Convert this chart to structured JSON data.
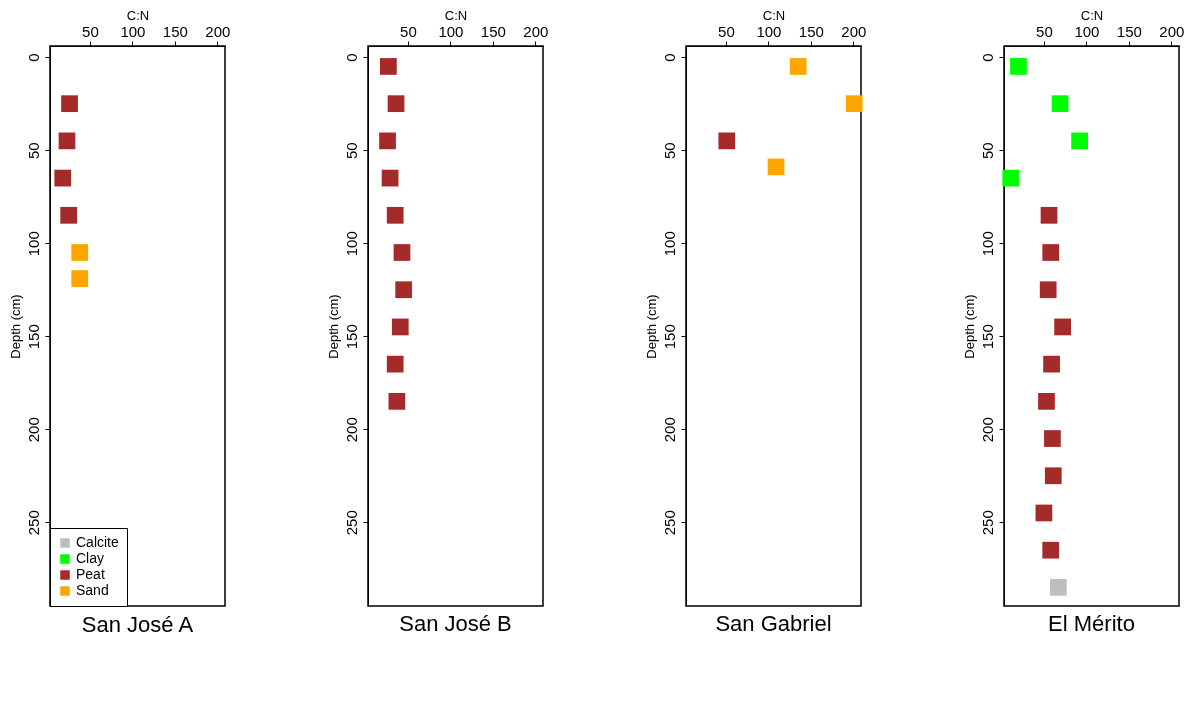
{
  "chart_data": [
    {
      "type": "scatter",
      "title": "San José A",
      "xlabel": "C:N",
      "ylabel": "Depth (cm)",
      "xlim": [
        3,
        209
      ],
      "xticks": [
        50,
        100,
        150,
        200
      ],
      "ylim": [
        295,
        -6
      ],
      "yticks": [
        0,
        50,
        100,
        150,
        200,
        250
      ],
      "grid": false,
      "marker": "square",
      "legend": "bottom left",
      "series": [
        {
          "name": "Calcite",
          "color": "#bebebe"
        },
        {
          "name": "Clay",
          "color": "#00ff00"
        },
        {
          "name": "Peat",
          "color": "#a52a2a",
          "x": [
            26,
            23,
            18,
            25
          ],
          "values": [
            25,
            45,
            65,
            85
          ]
        },
        {
          "name": "Sand",
          "color": "#ffa500",
          "x": [
            38,
            38
          ],
          "values": [
            105,
            119
          ]
        }
      ]
    },
    {
      "type": "scatter",
      "title": "San José B",
      "xlabel": "C:N",
      "ylabel": "Depth (cm)",
      "xlim": [
        3,
        209
      ],
      "xticks": [
        50,
        100,
        150,
        200
      ],
      "ylim": [
        295,
        -6
      ],
      "yticks": [
        0,
        50,
        100,
        150,
        200,
        250
      ],
      "grid": false,
      "marker": "square",
      "legend": false,
      "series": [
        {
          "name": "Peat",
          "color": "#a52a2a",
          "x": [
            27,
            36,
            26,
            29,
            35,
            43,
            45,
            41,
            35,
            37
          ],
          "values": [
            5,
            25,
            45,
            65,
            85,
            105,
            125,
            145,
            165,
            185
          ]
        }
      ]
    },
    {
      "type": "scatter",
      "title": "San Gabriel",
      "xlabel": "C:N",
      "ylabel": "Depth (cm)",
      "xlim": [
        3,
        209
      ],
      "xticks": [
        50,
        100,
        150,
        200
      ],
      "ylim": [
        295,
        -6
      ],
      "yticks": [
        0,
        50,
        100,
        150,
        200,
        250
      ],
      "grid": false,
      "marker": "square",
      "legend": false,
      "series": [
        {
          "name": "Peat",
          "color": "#a52a2a",
          "x": [
            51
          ],
          "values": [
            45
          ]
        },
        {
          "name": "Sand",
          "color": "#ffa500",
          "x": [
            135,
            201,
            109
          ],
          "values": [
            5,
            25,
            59
          ]
        }
      ]
    },
    {
      "type": "scatter",
      "title": "El Mérito",
      "xlabel": "C:N",
      "ylabel": "Depth (cm)",
      "xlim": [
        3,
        209
      ],
      "xticks": [
        50,
        100,
        150,
        200
      ],
      "ylim": [
        295,
        -6
      ],
      "yticks": [
        0,
        50,
        100,
        150,
        200,
        250
      ],
      "grid": false,
      "marker": "square",
      "legend": false,
      "series": [
        {
          "color": "#00ff00",
          "x": [
            20,
            69,
            92,
            11
          ],
          "values": [
            5,
            25,
            45,
            65
          ]
        },
        {
          "name": "Peat",
          "color": "#a52a2a",
          "x": [
            56,
            58,
            55,
            72,
            59,
            53,
            60,
            61,
            50,
            58
          ],
          "values": [
            85,
            105,
            125,
            145,
            165,
            185,
            205,
            225,
            245,
            265
          ]
        },
        {
          "color": "#bebebe",
          "x": [
            67
          ],
          "values": [
            285
          ]
        }
      ]
    }
  ]
}
